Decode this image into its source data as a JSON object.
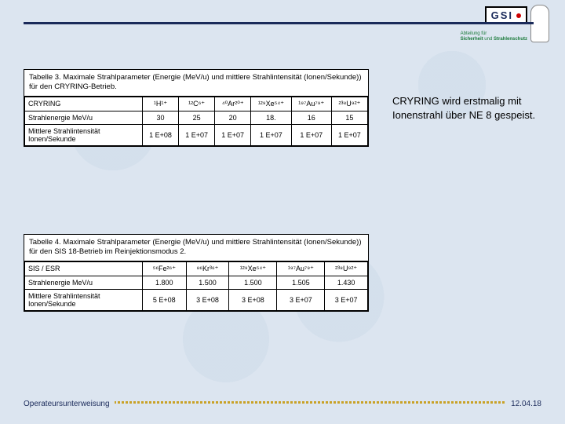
{
  "header": {
    "logo_text": "GSI",
    "dept_line1": "Abteilung für",
    "dept_line2_a": "Sicherheit",
    "dept_line2_b": "und",
    "dept_line2_c": "Strahlenschutz"
  },
  "note": "CRYRING wird erstmalig mit Ionenstrahl über NE 8 gespeist.",
  "table1": {
    "caption": "Tabelle 3. Maximale Strahlparameter (Energie (MeV/u) und mittlere Strahlintensität (Ionen/Sekunde)) für den CRYRING-Betrieb.",
    "row_header": "CRYRING",
    "ions": [
      "¹H¹⁺",
      "¹²C⁶⁺",
      "⁴⁰Ar²⁰⁺",
      "¹²⁹Xe⁵⁴⁺",
      "¹⁹⁷Au⁷⁹⁺",
      "²³⁸U⁹²⁺"
    ],
    "rows": [
      {
        "label": "Strahlenergie MeV/u",
        "vals": [
          "30",
          "25",
          "20",
          "18.",
          "16",
          "15"
        ]
      },
      {
        "label": "Mittlere Strahlintensität Ionen/Sekunde",
        "vals": [
          "1 E+08",
          "1 E+07",
          "1 E+07",
          "1 E+07",
          "1 E+07",
          "1 E+07"
        ]
      }
    ]
  },
  "table2": {
    "caption": "Tabelle 4. Maximale Strahlparameter (Energie (MeV/u) und mittlere Strahlintensität (Ionen/Sekunde)) für den SIS 18-Betrieb im Reinjektionsmodus 2.",
    "row_header": "SIS / ESR",
    "ions": [
      "⁵⁶Fe²⁶⁺",
      "⁸⁶Kr³⁶⁺",
      "¹²⁹Xe⁵⁴⁺",
      "¹⁹⁷Au⁷⁹⁺",
      "²³⁸U⁹²⁺"
    ],
    "rows": [
      {
        "label": "Strahlenergie MeV/u",
        "vals": [
          "1.800",
          "1.500",
          "1.500",
          "1.505",
          "1.430"
        ]
      },
      {
        "label": "Mittlere Strahlintensität Ionen/Sekunde",
        "vals": [
          "5 E+08",
          "3 E+08",
          "3 E+08",
          "3 E+07",
          "3 E+07"
        ]
      }
    ]
  },
  "footer": {
    "left": "Operateursunterweisung",
    "right": "12.04.18"
  }
}
